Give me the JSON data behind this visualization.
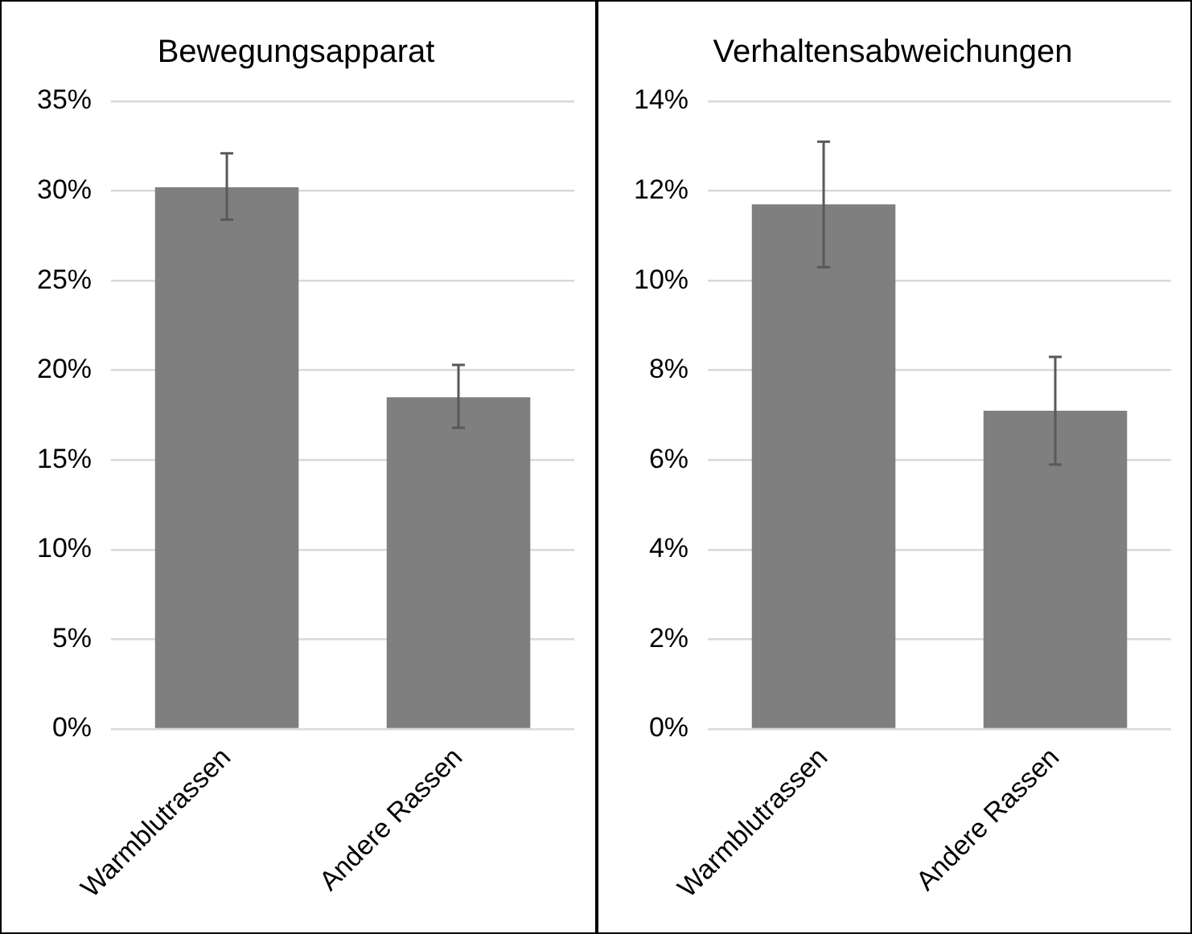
{
  "chart_data": [
    {
      "type": "bar",
      "title": "Bewegungsapparat",
      "categories": [
        "Warmblutrassen",
        "Andere Rassen"
      ],
      "values": [
        30.2,
        18.5
      ],
      "errors": [
        [
          28.4,
          32.1
        ],
        [
          16.8,
          20.3
        ]
      ],
      "color": "#7f7f7f",
      "ylim": [
        0,
        35
      ],
      "yticks": [
        {
          "value": 0,
          "label": "0%"
        },
        {
          "value": 5,
          "label": "5%"
        },
        {
          "value": 10,
          "label": "10%"
        },
        {
          "value": 15,
          "label": "15%"
        },
        {
          "value": 20,
          "label": "20%"
        },
        {
          "value": 25,
          "label": "25%"
        },
        {
          "value": 30,
          "label": "30%"
        },
        {
          "value": 35,
          "label": "35%"
        }
      ],
      "grid": "y",
      "legend": false
    },
    {
      "type": "bar",
      "title": "Verhaltensabweichungen",
      "categories": [
        "Warmblutrassen",
        "Andere Rassen"
      ],
      "values": [
        11.7,
        7.1
      ],
      "errors": [
        [
          10.3,
          13.1
        ],
        [
          5.9,
          8.3
        ]
      ],
      "color": "#7f7f7f",
      "ylim": [
        0,
        14
      ],
      "yticks": [
        {
          "value": 0,
          "label": "0%"
        },
        {
          "value": 2,
          "label": "2%"
        },
        {
          "value": 4,
          "label": "4%"
        },
        {
          "value": 6,
          "label": "6%"
        },
        {
          "value": 8,
          "label": "8%"
        },
        {
          "value": 10,
          "label": "10%"
        },
        {
          "value": 12,
          "label": "12%"
        },
        {
          "value": 14,
          "label": "14%"
        }
      ],
      "grid": "y",
      "legend": false
    }
  ]
}
